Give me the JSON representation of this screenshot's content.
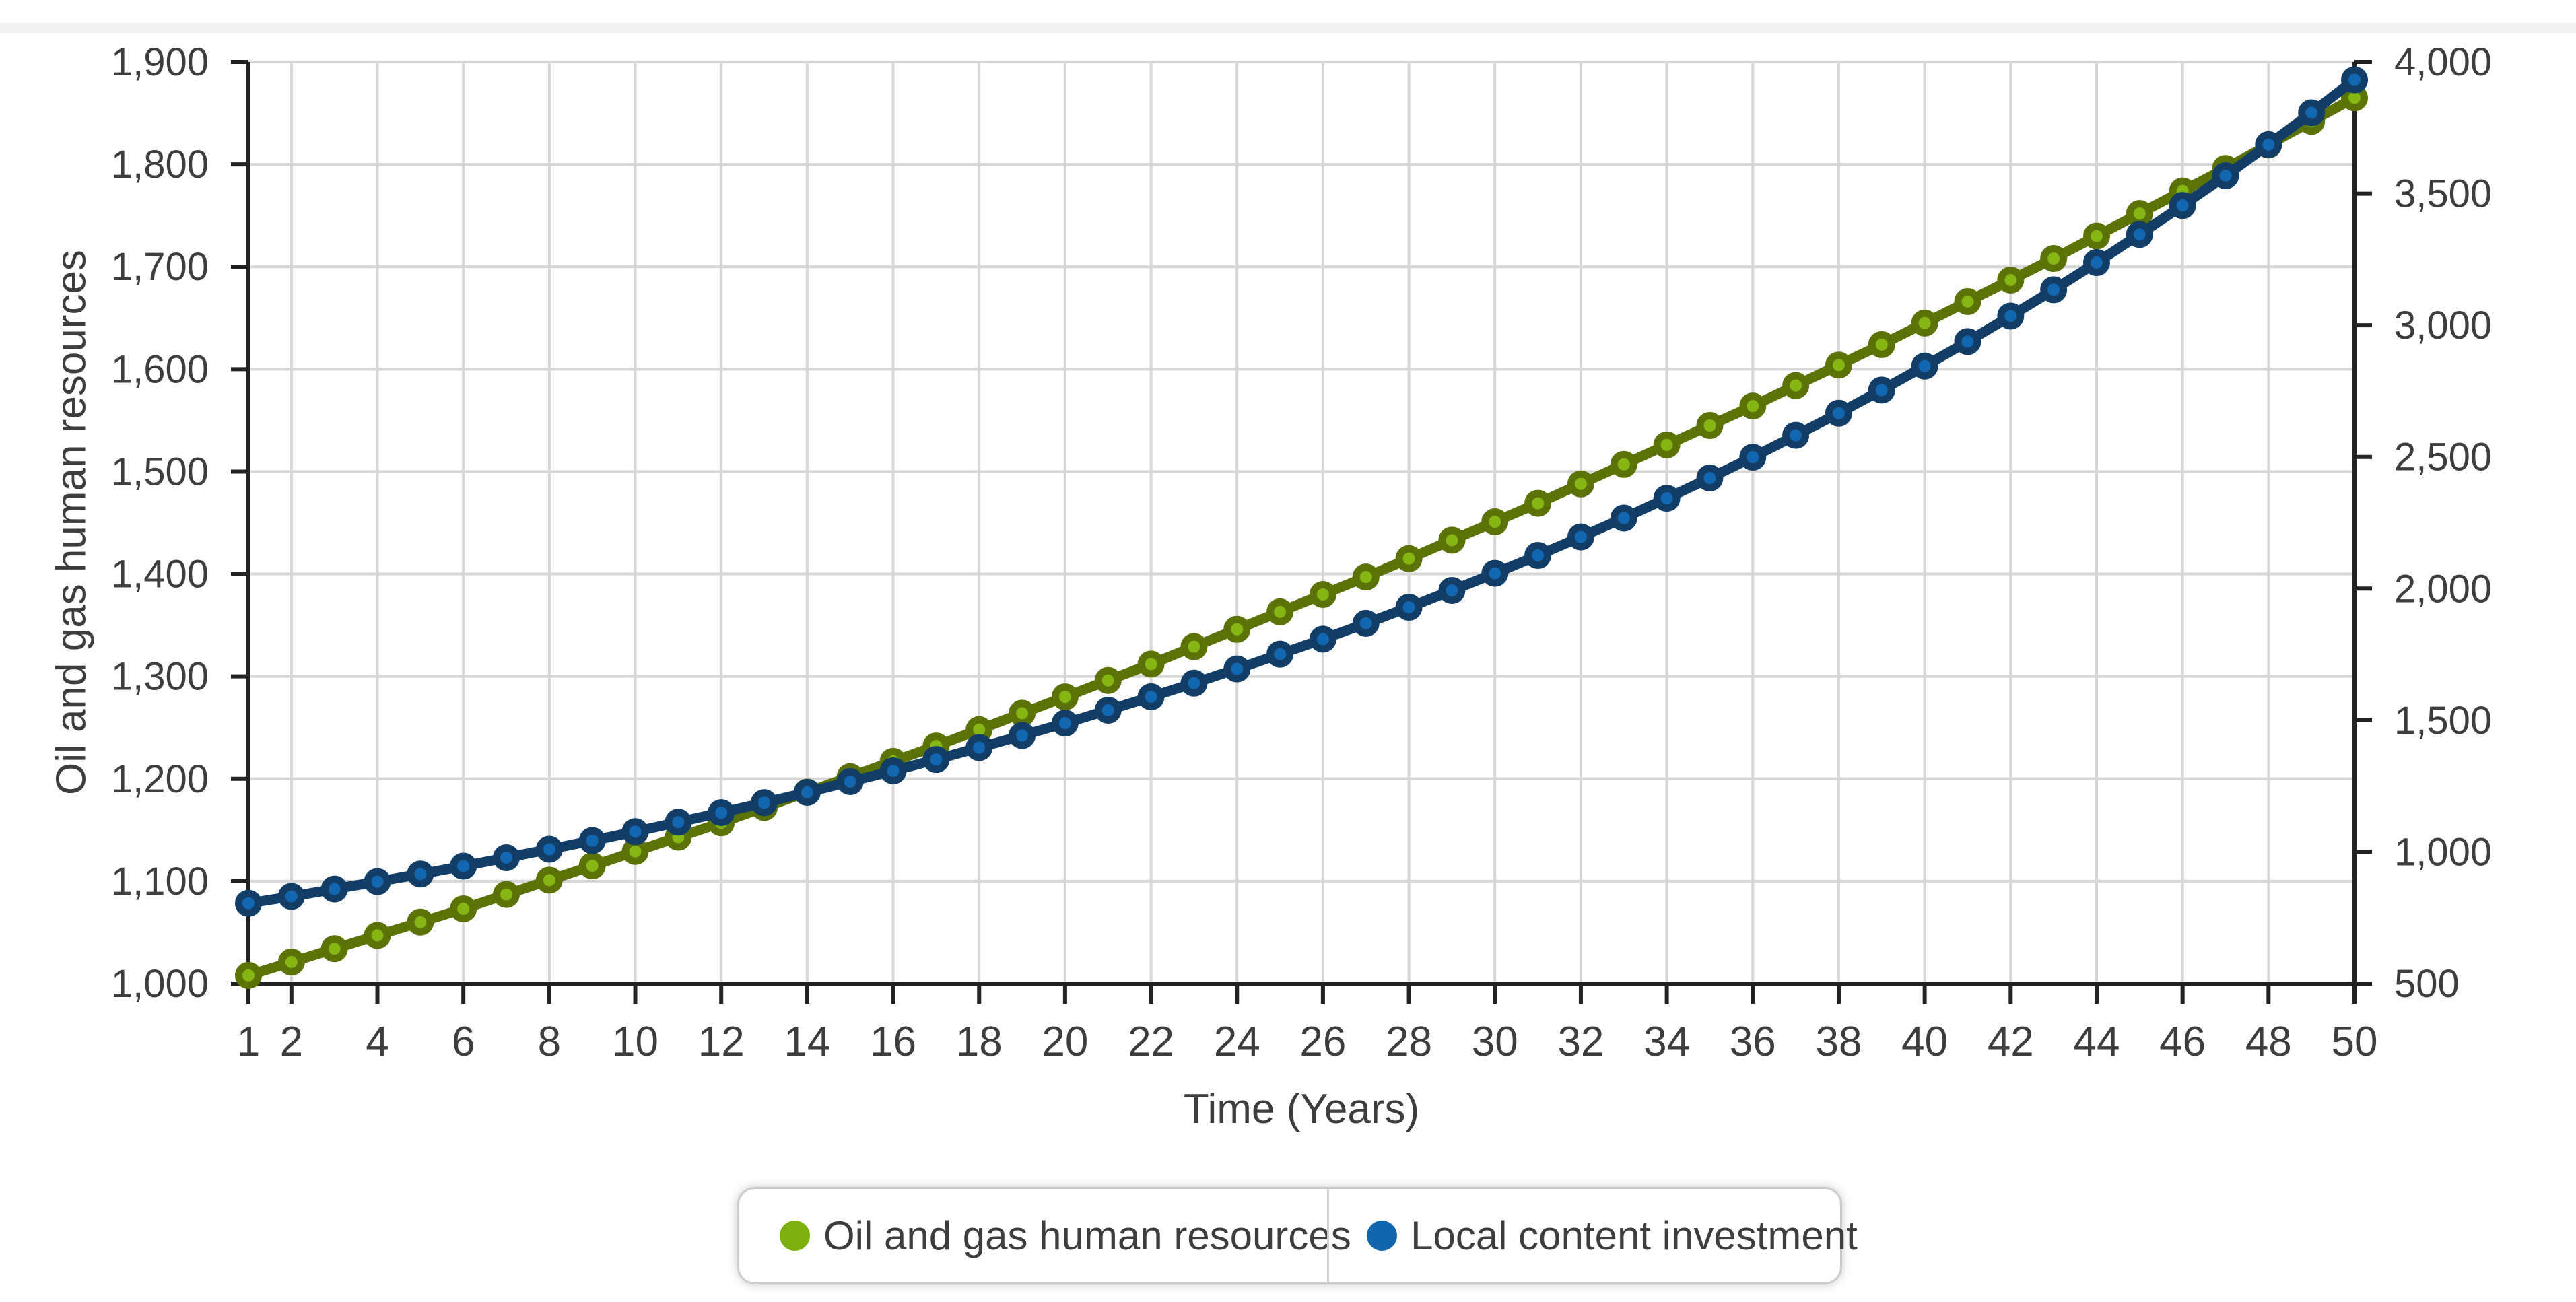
{
  "page": {
    "background_color": "#ffffff",
    "top_band_color": "#f1f1f1",
    "text_color": "#3d3d3d",
    "grid_color": "#d6d6d6",
    "axis_color": "#222222"
  },
  "chart_data": {
    "type": "line",
    "title": "",
    "xlabel": "Time (Years)",
    "ylabel_left": "Oil and gas human resources",
    "ylabel_right": "",
    "grid": true,
    "legend_position": "bottom",
    "x_range": [
      1,
      50
    ],
    "y_left_range": [
      1000,
      1900
    ],
    "y_right_range": [
      500,
      4000
    ],
    "x": [
      1,
      2,
      3,
      4,
      5,
      6,
      7,
      8,
      9,
      10,
      11,
      12,
      13,
      14,
      15,
      16,
      17,
      18,
      19,
      20,
      21,
      22,
      23,
      24,
      25,
      26,
      27,
      28,
      29,
      30,
      31,
      32,
      33,
      34,
      35,
      36,
      37,
      38,
      39,
      40,
      41,
      42,
      43,
      44,
      45,
      46,
      47,
      48,
      49,
      50
    ],
    "x_tick_values": [
      1,
      2,
      4,
      6,
      8,
      10,
      12,
      14,
      16,
      18,
      20,
      22,
      24,
      26,
      28,
      30,
      32,
      34,
      36,
      38,
      40,
      42,
      44,
      46,
      48,
      50
    ],
    "x_tick_labels": [
      "1",
      "2",
      "4",
      "6",
      "8",
      "10",
      "12",
      "14",
      "16",
      "18",
      "20",
      "22",
      "24",
      "26",
      "28",
      "30",
      "32",
      "34",
      "36",
      "38",
      "40",
      "42",
      "44",
      "46",
      "48",
      "50"
    ],
    "y_left_tick_values": [
      1000,
      1100,
      1200,
      1300,
      1400,
      1500,
      1600,
      1700,
      1800,
      1900
    ],
    "y_left_tick_labels": [
      "1,000",
      "1,100",
      "1,200",
      "1,300",
      "1,400",
      "1,500",
      "1,600",
      "1,700",
      "1,800",
      "1,900"
    ],
    "y_right_tick_values": [
      500,
      1000,
      1500,
      2000,
      2500,
      3000,
      3500,
      4000
    ],
    "y_right_tick_labels": [
      "500",
      "1,000",
      "1,500",
      "2,000",
      "2,500",
      "3,000",
      "3,500",
      "4,000"
    ],
    "series": [
      {
        "name": "Oil and gas human resources",
        "axis": "left",
        "line_color": "#5b7206",
        "marker_color": "#84b714",
        "values": [
          1008,
          1021,
          1034,
          1047,
          1060,
          1073,
          1087,
          1101,
          1115,
          1129,
          1143,
          1157,
          1172,
          1187,
          1202,
          1217,
          1232,
          1248,
          1264,
          1280,
          1296,
          1312,
          1329,
          1346,
          1363,
          1380,
          1397,
          1415,
          1433,
          1451,
          1469,
          1488,
          1507,
          1526,
          1545,
          1564,
          1584,
          1604,
          1624,
          1645,
          1666,
          1687,
          1708,
          1730,
          1752,
          1774,
          1796,
          1819,
          1842,
          1865
        ]
      },
      {
        "name": "Local content investment",
        "axis": "right",
        "line_color": "#123d66",
        "marker_color": "#1367b1",
        "values": [
          805,
          831,
          859,
          887,
          916,
          946,
          978,
          1010,
          1043,
          1077,
          1113,
          1149,
          1187,
          1226,
          1267,
          1308,
          1351,
          1396,
          1442,
          1489,
          1538,
          1589,
          1641,
          1695,
          1751,
          1808,
          1868,
          1929,
          1993,
          2058,
          2126,
          2196,
          2268,
          2343,
          2420,
          2499,
          2582,
          2666,
          2754,
          2845,
          2938,
          3035,
          3135,
          3238,
          3345,
          3455,
          3568,
          3686,
          3807,
          3932
        ]
      }
    ]
  },
  "legend": {
    "items": [
      {
        "label": "Oil and gas human resources",
        "dot_color": "#7cb010"
      },
      {
        "label": "Local content investment",
        "dot_color": "#1166ae"
      }
    ]
  }
}
